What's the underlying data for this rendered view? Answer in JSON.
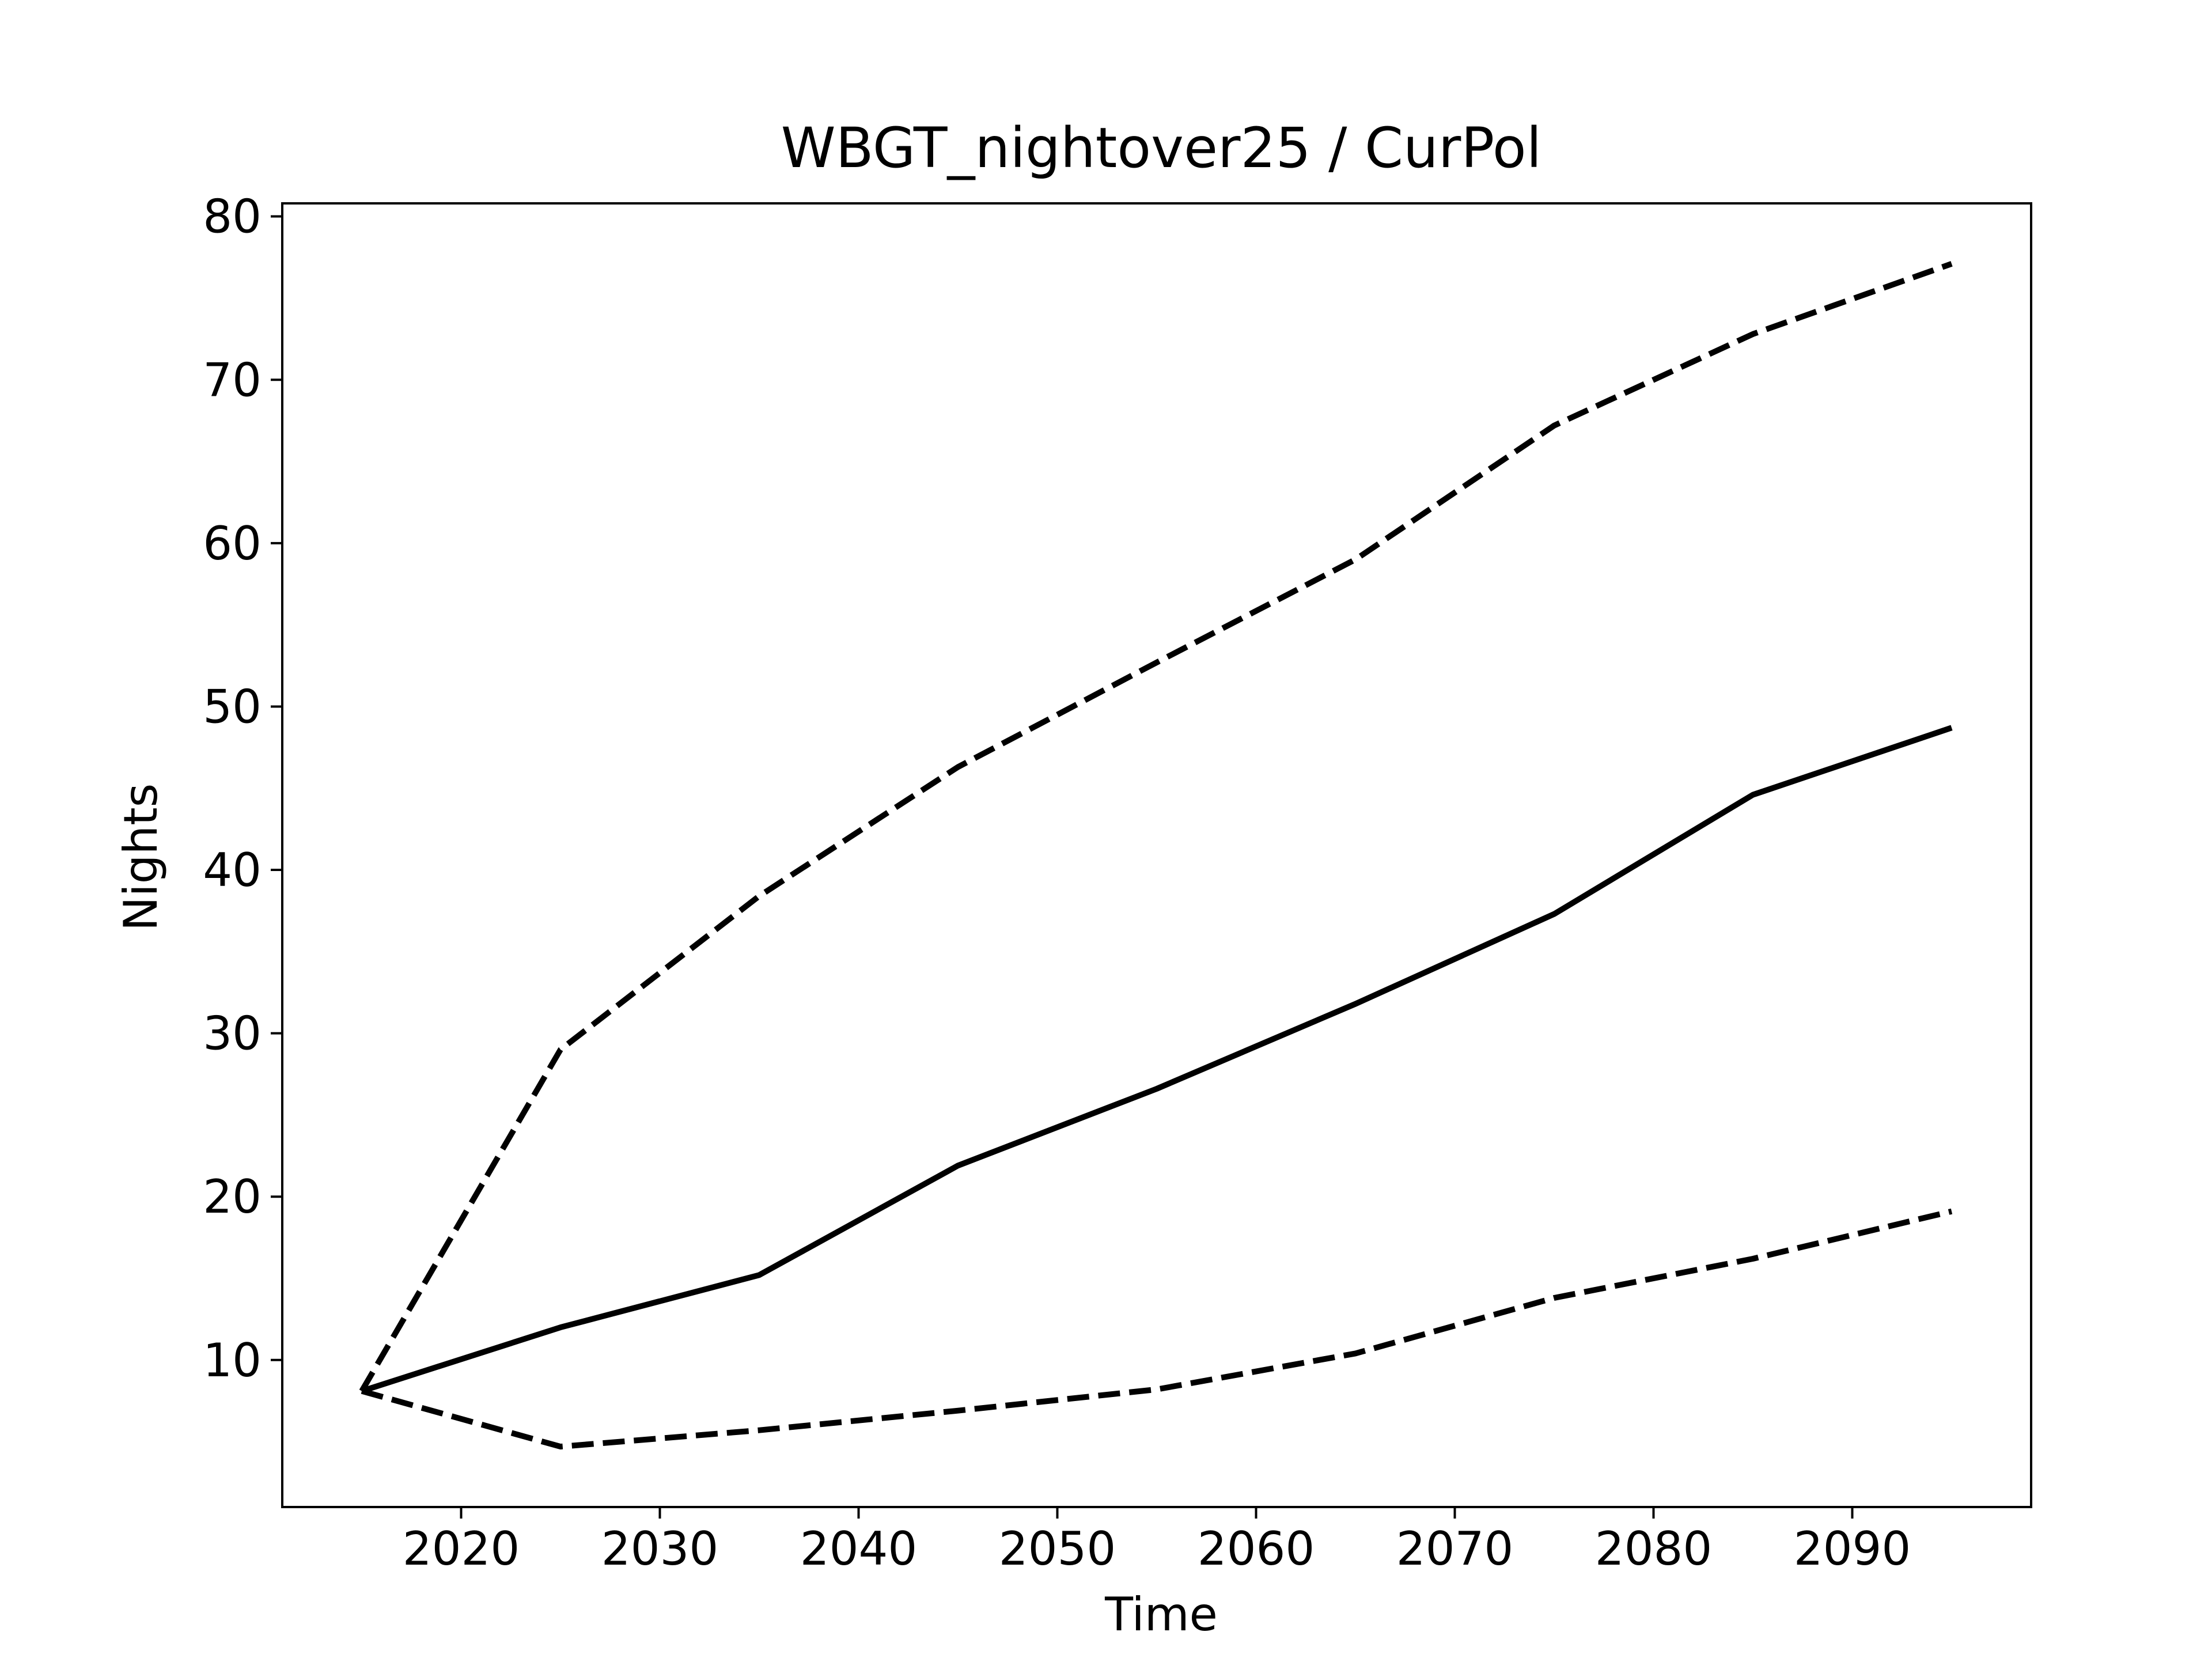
{
  "chart_data": {
    "type": "line",
    "title": "WBGT_nightover25 / CurPol",
    "xlabel": "Time",
    "ylabel": "Nights",
    "xlim": [
      2011,
      2099
    ],
    "ylim": [
      1,
      80.8
    ],
    "xticks": [
      2020,
      2030,
      2040,
      2050,
      2060,
      2070,
      2080,
      2090
    ],
    "yticks": [
      10,
      20,
      30,
      40,
      50,
      60,
      70,
      80
    ],
    "grid": false,
    "legend": "none",
    "x": [
      2015,
      2025,
      2035,
      2045,
      2055,
      2065,
      2075,
      2085,
      2095
    ],
    "series": [
      {
        "style": "solid",
        "color": "#000000",
        "values": [
          8.1,
          12.0,
          15.2,
          21.9,
          26.6,
          31.8,
          37.3,
          44.6,
          48.7
        ]
      },
      {
        "style": "dashed",
        "color": "#000000",
        "values": [
          8.1,
          29.0,
          38.4,
          46.3,
          52.7,
          59.0,
          67.2,
          72.8,
          77.1
        ]
      },
      {
        "style": "dashed",
        "color": "#000000",
        "values": [
          8.1,
          4.7,
          5.7,
          6.9,
          8.2,
          10.4,
          13.8,
          16.2,
          19.1
        ]
      }
    ]
  }
}
